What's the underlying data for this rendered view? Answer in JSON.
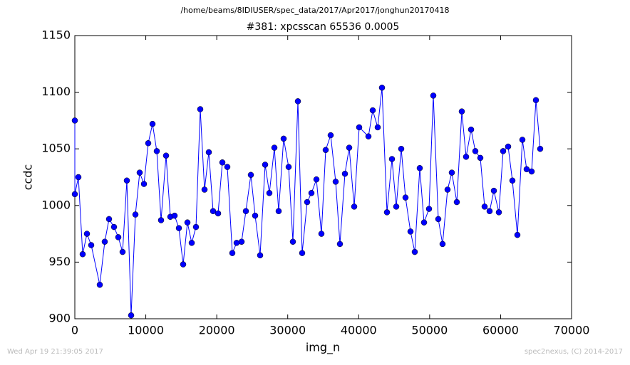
{
  "chart_data": {
    "type": "line",
    "suptitle": "/home/beams/8IDIUSER/spec_data/2017/Apr2017/jonghun20170418",
    "title": "#381: xpcsscan 65536 0.0005",
    "xlabel": "img_n",
    "ylabel": "ccdc",
    "footer_left": "Wed Apr 19 21:39:05 2017",
    "footer_right": "spec2nexus, (C) 2014-2017",
    "xlim": [
      0,
      70000
    ],
    "xticks": [
      0,
      10000,
      20000,
      30000,
      40000,
      50000,
      60000,
      70000
    ],
    "ylim": [
      900,
      1150
    ],
    "yticks": [
      900,
      950,
      1000,
      1050,
      1100,
      1150
    ],
    "series": [
      {
        "color": "#0000ff",
        "x": [
          0,
          0,
          502,
          1105,
          1707,
          2310,
          3515,
          4218,
          4821,
          5524,
          6126,
          6729,
          7331,
          7934,
          8537,
          9139,
          9742,
          10344,
          10947,
          11549,
          12152,
          12855,
          13458,
          14060,
          14663,
          15265,
          15868,
          16471,
          17073,
          17676,
          18278,
          18881,
          19483,
          20186,
          20789,
          21492,
          22195,
          22798,
          23501,
          24103,
          24806,
          25409,
          26112,
          26815,
          27417,
          28120,
          28723,
          29426,
          30129,
          30731,
          31435,
          32037,
          32740,
          33343,
          34046,
          34749,
          35351,
          36054,
          36757,
          37360,
          38063,
          38666,
          39369,
          40072,
          41377,
          41980,
          42683,
          43285,
          43988,
          44691,
          45294,
          45997,
          46600,
          47303,
          47905,
          48608,
          49211,
          49914,
          50516,
          51219,
          51822,
          52525,
          53127,
          53830,
          54533,
          55136,
          55839,
          56441,
          57144,
          57747,
          58450,
          59053,
          59756,
          60358,
          61061,
          61664,
          62367,
          63070,
          63672,
          64375,
          64978,
          65581
        ],
        "values": [
          1075,
          1010,
          1025,
          957,
          975,
          965,
          930,
          968,
          988,
          981,
          972,
          959,
          1022,
          903,
          992,
          1029,
          1019,
          1055,
          1072,
          1048,
          987,
          1044,
          990,
          991,
          980,
          948,
          985,
          967,
          981,
          1085,
          1014,
          1047,
          995,
          993,
          1038,
          1034,
          958,
          967,
          968,
          995,
          1027,
          991,
          956,
          1036,
          1011,
          1051,
          995,
          1059,
          1034,
          968,
          1092,
          958,
          1003,
          1011,
          1023,
          975,
          1049,
          1062,
          1021,
          966,
          1028,
          1051,
          999,
          1069,
          1061,
          1084,
          1069,
          1104,
          994,
          1041,
          999,
          1050,
          1007,
          977,
          959,
          1033,
          985,
          997,
          1097,
          988,
          966,
          1014,
          1029,
          1003,
          1083,
          1043,
          1067,
          1048,
          1042,
          999,
          995,
          1013,
          994,
          1048,
          1052,
          1022,
          974,
          1058,
          1032,
          1030,
          1093,
          1050
        ]
      }
    ]
  }
}
